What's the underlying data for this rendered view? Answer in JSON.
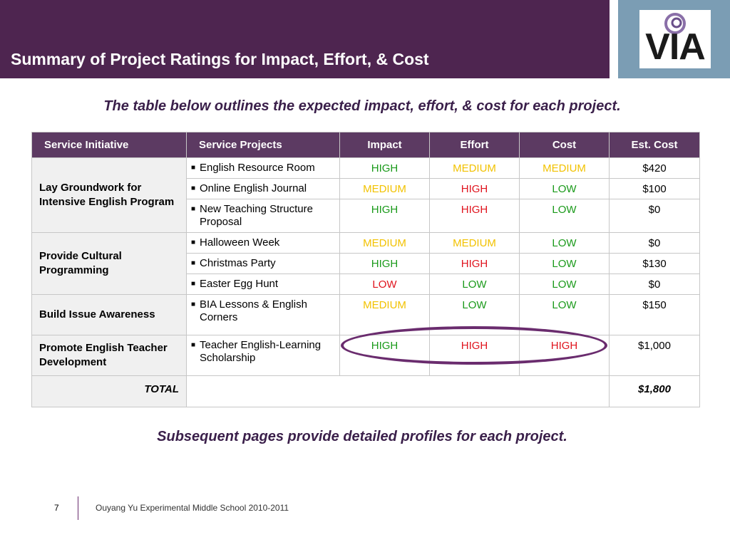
{
  "header": {
    "title": "Summary of Project Ratings for Impact, Effort, & Cost"
  },
  "logo": {
    "text": "VIA",
    "colors": {
      "swirl": "#6a4f8a",
      "panel": "#7b9db4"
    }
  },
  "subtitle": "The table below outlines the expected impact, effort, & cost for each project.",
  "table": {
    "columns": [
      "Service Initiative",
      "Service Projects",
      "Impact",
      "Effort",
      "Cost",
      "Est. Cost"
    ],
    "groups": [
      {
        "initiative": "Lay Groundwork for Intensive English Program",
        "projects": [
          {
            "name": "English Resource Room",
            "impact": "HIGH",
            "effort": "MEDIUM",
            "cost": "MEDIUM",
            "est_cost": "$420"
          },
          {
            "name": "Online English Journal",
            "impact": "MEDIUM",
            "effort": "HIGH",
            "cost": "LOW",
            "est_cost": "$100"
          },
          {
            "name": "New Teaching Structure Proposal",
            "impact": "HIGH",
            "effort": "HIGH",
            "cost": "LOW",
            "est_cost": "$0"
          }
        ]
      },
      {
        "initiative": "Provide Cultural Programming",
        "projects": [
          {
            "name": "Halloween Week",
            "impact": "MEDIUM",
            "effort": "MEDIUM",
            "cost": "LOW",
            "est_cost": "$0"
          },
          {
            "name": "Christmas Party",
            "impact": "HIGH",
            "effort": "HIGH",
            "cost": "LOW",
            "est_cost": "$130"
          },
          {
            "name": "Easter Egg Hunt",
            "impact": "LOW",
            "effort": "LOW",
            "cost": "LOW",
            "est_cost": "$0"
          }
        ]
      },
      {
        "initiative": "Build Issue Awareness",
        "projects": [
          {
            "name": "BIA Lessons & English Corners",
            "impact": "MEDIUM",
            "effort": "LOW",
            "cost": "LOW",
            "est_cost": "$150"
          }
        ]
      },
      {
        "initiative": "Promote English Teacher Development",
        "projects": [
          {
            "name": "Teacher English-Learning Scholarship",
            "impact": "HIGH",
            "effort": "HIGH",
            "cost": "HIGH",
            "est_cost": "$1,000"
          }
        ]
      }
    ],
    "total_label": "TOTAL",
    "total_value": "$1,800"
  },
  "bottom_note": "Subsequent pages provide detailed profiles for each project.",
  "footer": {
    "page_number": "7",
    "text": "Ouyang Yu Experimental Middle School  2010-2011"
  }
}
